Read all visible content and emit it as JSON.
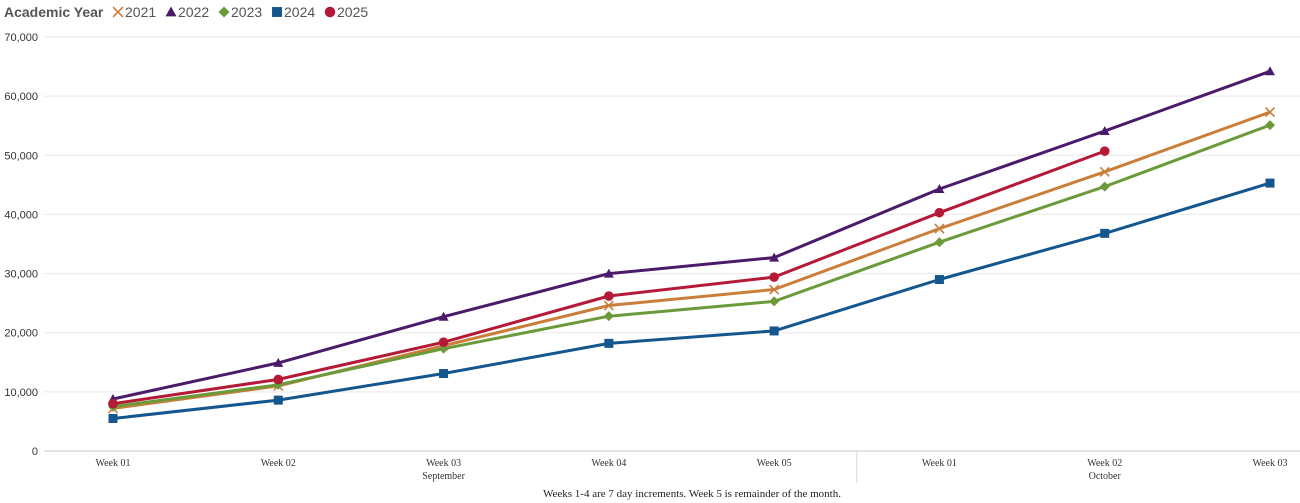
{
  "chart_data": {
    "type": "line",
    "legend_title": "Academic Year",
    "legend_position": "top-left",
    "grid": true,
    "ylim": [
      0,
      70000
    ],
    "yticks": [
      0,
      10000,
      20000,
      30000,
      40000,
      50000,
      60000,
      70000
    ],
    "ytick_labels": [
      "0",
      "10,000",
      "20,000",
      "30,000",
      "40,000",
      "50,000",
      "60,000",
      "70,000"
    ],
    "categories": [
      "Week 01",
      "Week 02",
      "Week 03",
      "Week 04",
      "Week 05",
      "Week 01",
      "Week 02",
      "Week 03"
    ],
    "category_groups": [
      {
        "label": "September",
        "start": 0,
        "end": 4
      },
      {
        "label": "October",
        "start": 5,
        "end": 7
      }
    ],
    "footnote": "Weeks 1-4 are 7 day increments. Week 5 is remainder of the month.",
    "series": [
      {
        "name": "2021",
        "marker": "x",
        "color": "#C97E3A",
        "values": [
          7200,
          11000,
          17800,
          24600,
          27300,
          37600,
          47200,
          57300
        ]
      },
      {
        "name": "2022",
        "marker": "triangle",
        "color": "#4B1A6B",
        "values": [
          8800,
          14900,
          22700,
          30000,
          32700,
          44300,
          54100,
          64200
        ]
      },
      {
        "name": "2023",
        "marker": "diamond",
        "color": "#6A9A3A",
        "values": [
          7500,
          11200,
          17300,
          22800,
          25300,
          35300,
          44700,
          55100
        ]
      },
      {
        "name": "2024",
        "marker": "square",
        "color": "#14568E",
        "values": [
          5500,
          8600,
          13100,
          18200,
          20300,
          29000,
          36800,
          45300
        ]
      },
      {
        "name": "2025",
        "marker": "circle",
        "color": "#B51938",
        "values": [
          8000,
          12100,
          18400,
          26200,
          29400,
          40300,
          50700,
          null
        ]
      }
    ]
  }
}
